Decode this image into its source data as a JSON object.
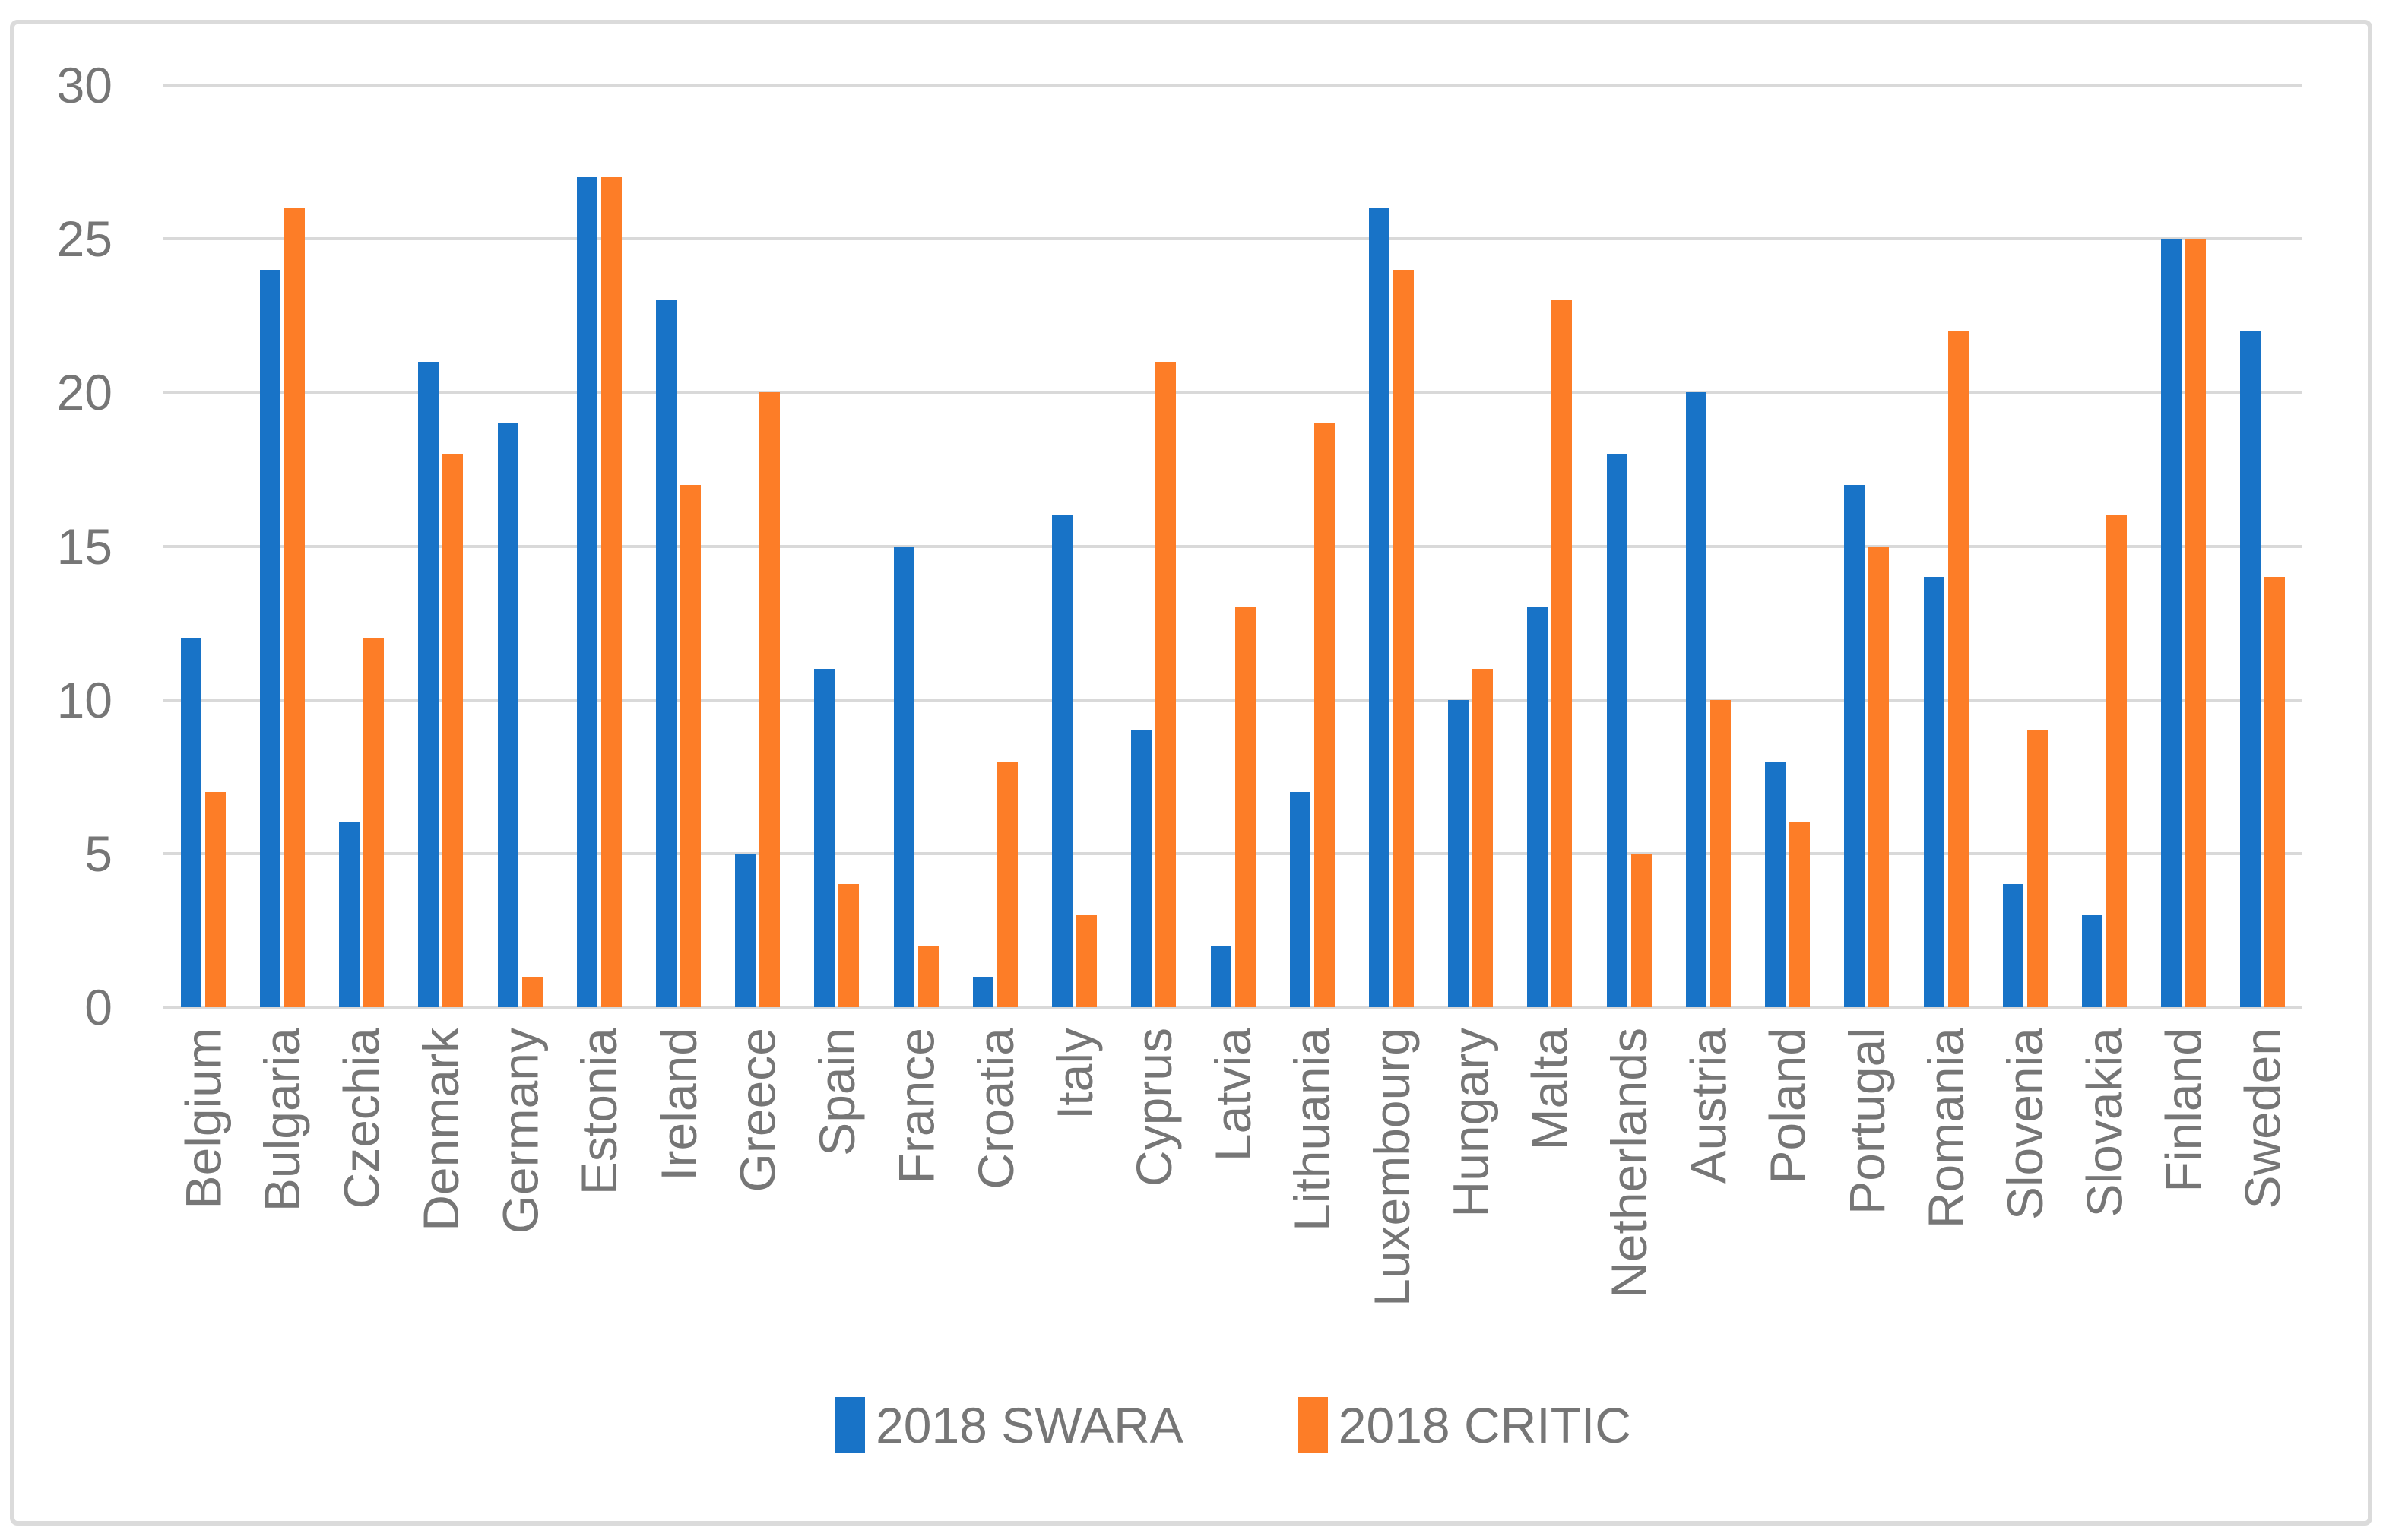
{
  "figure": {
    "background": "#FFFFFF",
    "border_color": "#DBDBDB"
  },
  "chart_data": {
    "type": "bar",
    "title": "",
    "xlabel": "",
    "ylabel": "",
    "categories": [
      "Belgium",
      "Bulgaria",
      "Czechia",
      "Denmark",
      "Germany",
      "Estonia",
      "Ireland",
      "Greece",
      "Spain",
      "France",
      "Croatia",
      "Italy",
      "Cyprus",
      "Latvia",
      "Lithuania",
      "Luxembourg",
      "Hungary",
      "Malta",
      "Netherlands",
      "Austria",
      "Poland",
      "Portugal",
      "Romania",
      "Slovenia",
      "Slovakia",
      "Finland",
      "Sweden"
    ],
    "series": [
      {
        "name": "2018 SWARA",
        "color": "#1873C7",
        "values": [
          12,
          24,
          6,
          21,
          19,
          27,
          23,
          5,
          11,
          15,
          1,
          16,
          9,
          2,
          7,
          26,
          10,
          13,
          18,
          20,
          8,
          17,
          14,
          4,
          3,
          25,
          22
        ]
      },
      {
        "name": "2018 CRITIC",
        "color": "#FD7D27",
        "values": [
          7,
          26,
          12,
          18,
          1,
          27,
          17,
          20,
          4,
          2,
          8,
          3,
          21,
          13,
          19,
          24,
          11,
          23,
          5,
          10,
          6,
          15,
          22,
          9,
          16,
          25,
          14
        ]
      }
    ],
    "ylim": [
      0,
      30
    ],
    "yticks": [
      0,
      5,
      10,
      15,
      20,
      25,
      30
    ],
    "grid": "horizontal",
    "gridline_color": "#D9D9D9",
    "axis_text_color": "#767676",
    "legend_position": "bottom-center",
    "x_label_rotation": -90
  }
}
